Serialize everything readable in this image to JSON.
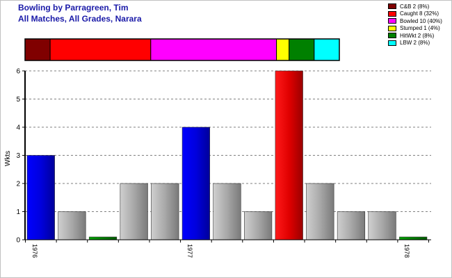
{
  "header": {
    "title_line1": "Bowling by Parragreen, Tim",
    "title_line2": "All Matches, All Grades, Narara"
  },
  "legend": [
    {
      "label": "C&B 2 (8%)",
      "color": "#800000"
    },
    {
      "label": "Caught 8 (32%)",
      "color": "#ff0000"
    },
    {
      "label": "Bowled 10 (40%)",
      "color": "#ff00ff"
    },
    {
      "label": "Stumped 1 (4%)",
      "color": "#ffff00"
    },
    {
      "label": "HitWkt 2 (8%)",
      "color": "#008000"
    },
    {
      "label": "LBW 2 (8%)",
      "color": "#00ffff"
    }
  ],
  "chart_data": [
    {
      "type": "bar",
      "title": "Dismissal breakdown",
      "orientation": "horizontal-stacked",
      "categories": [
        "C&B",
        "Caught",
        "Bowled",
        "Stumped",
        "HitWkt",
        "LBW"
      ],
      "values": [
        2,
        8,
        10,
        1,
        2,
        2
      ],
      "colors": [
        "#800000",
        "#ff0000",
        "#ff00ff",
        "#ffff00",
        "#008000",
        "#00ffff"
      ]
    },
    {
      "type": "bar",
      "ylabel": "Wkts",
      "ylim": [
        0,
        6
      ],
      "yticks": [
        0,
        1,
        2,
        3,
        4,
        5,
        6
      ],
      "grid": true,
      "x_tick_labels": [
        {
          "label": "1976",
          "at_bar": 0
        },
        {
          "label": "1977",
          "at_bar": 5
        },
        {
          "label": "1978",
          "at_bar": 12
        }
      ],
      "bars": [
        {
          "value": 3,
          "color": "blue"
        },
        {
          "value": 1,
          "color": "gray"
        },
        {
          "value": 0.1,
          "color": "green"
        },
        {
          "value": 2,
          "color": "gray"
        },
        {
          "value": 2,
          "color": "gray"
        },
        {
          "value": 4,
          "color": "blue"
        },
        {
          "value": 2,
          "color": "gray"
        },
        {
          "value": 1,
          "color": "gray"
        },
        {
          "value": 6,
          "color": "red"
        },
        {
          "value": 2,
          "color": "gray"
        },
        {
          "value": 1,
          "color": "gray"
        },
        {
          "value": 1,
          "color": "gray"
        },
        {
          "value": 0.1,
          "color": "green"
        }
      ]
    }
  ]
}
